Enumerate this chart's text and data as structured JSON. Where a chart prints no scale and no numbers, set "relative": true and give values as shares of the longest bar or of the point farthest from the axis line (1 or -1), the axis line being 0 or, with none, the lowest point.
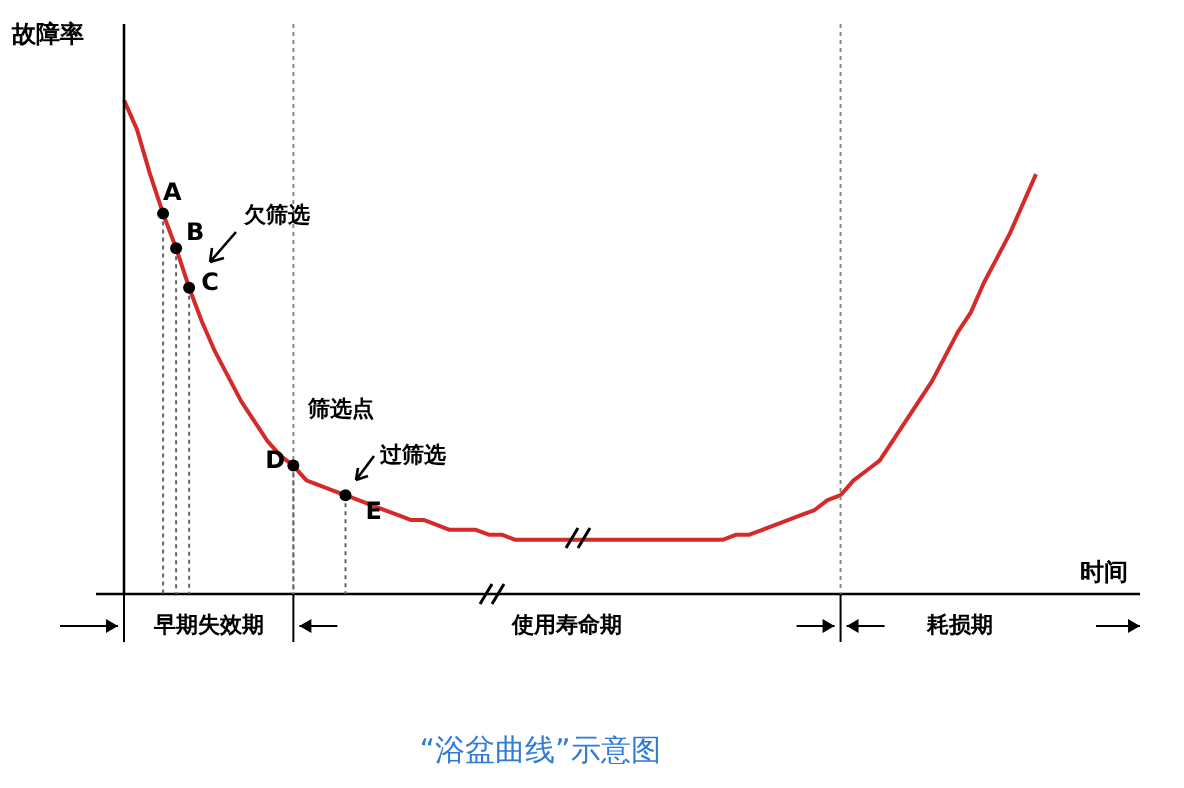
{
  "chart_data": {
    "type": "line",
    "relative": true,
    "title": "“浴盆曲线”示意图",
    "xlabel": "时间",
    "ylabel": "故障率",
    "categories": [
      null,
      null,
      null,
      null,
      null,
      null,
      null,
      null,
      null,
      null,
      null,
      null,
      null,
      null,
      null,
      null,
      null,
      null,
      null,
      null,
      null,
      null,
      null,
      null,
      null,
      null,
      null,
      null,
      null,
      null,
      null,
      null,
      null,
      null,
      null,
      null,
      null,
      null,
      null,
      null,
      null,
      null,
      null,
      null,
      null,
      null,
      null,
      null,
      null,
      null,
      null,
      null,
      null,
      null,
      null,
      null,
      null,
      null,
      null,
      null,
      null,
      null,
      null,
      null,
      null,
      null,
      null,
      null,
      null,
      null,
      null
    ],
    "series": [
      {
        "type": "line",
        "color": "#d42a2a",
        "values": [
          1.0,
          0.94,
          0.85,
          0.77,
          0.7,
          0.62,
          0.55,
          0.49,
          0.44,
          0.39,
          0.35,
          0.31,
          0.28,
          0.26,
          0.23,
          0.22,
          0.21,
          0.2,
          0.19,
          0.18,
          0.17,
          0.16,
          0.15,
          0.15,
          0.14,
          0.13,
          0.13,
          0.13,
          0.12,
          0.12,
          0.11,
          0.11,
          0.11,
          0.11,
          0.11,
          0.11,
          0.11,
          0.11,
          0.11,
          0.11,
          0.11,
          0.11,
          0.11,
          0.11,
          0.11,
          0.11,
          0.11,
          0.12,
          0.12,
          0.13,
          0.14,
          0.15,
          0.16,
          0.17,
          0.19,
          0.2,
          0.23,
          0.25,
          0.27,
          0.31,
          0.35,
          0.39,
          0.43,
          0.48,
          0.53,
          0.57,
          0.63,
          0.68,
          0.73,
          0.79,
          0.85
        ]
      }
    ],
    "annotations": [
      "欠筛选",
      "筛选点",
      "过筛选",
      "早期失效期",
      "使用寿命期",
      "耗损期",
      "A",
      "B",
      "C",
      "D",
      "E"
    ],
    "grid": false,
    "legend": false,
    "tick_labels": false
  }
}
